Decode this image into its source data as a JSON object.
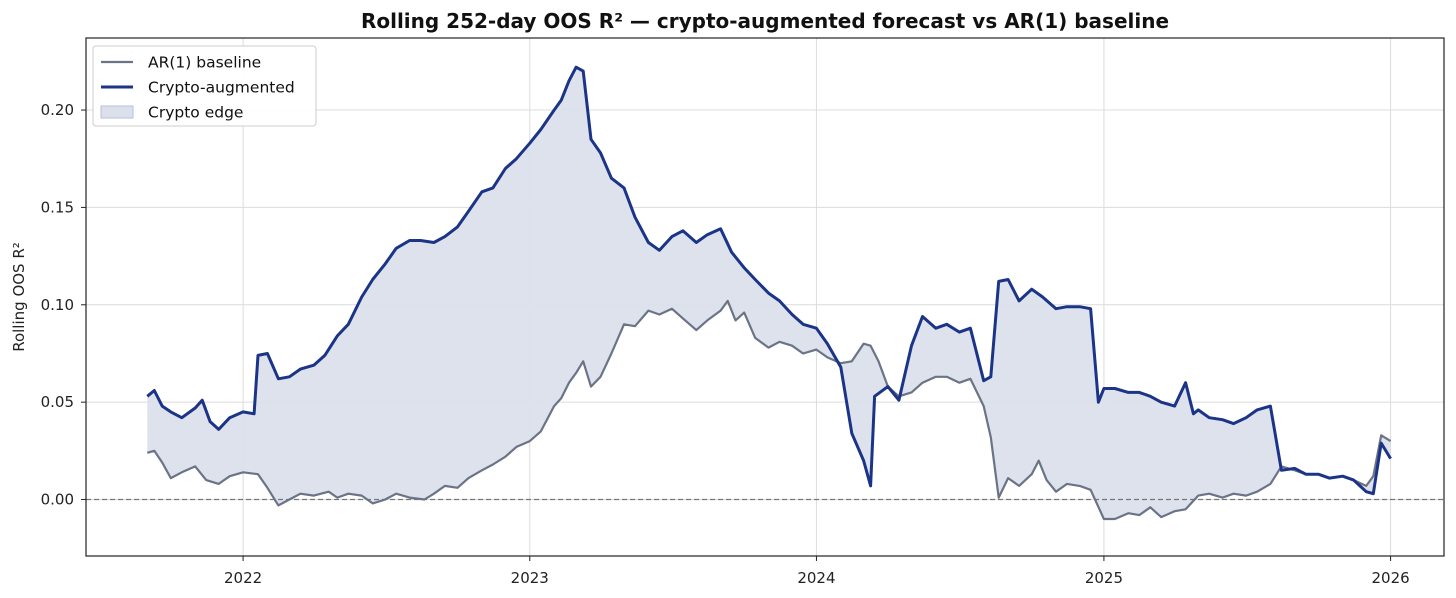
{
  "chart_data": {
    "type": "line",
    "title": "Rolling 252-day OOS R² — crypto-augmented forecast vs AR(1) baseline",
    "xlabel": "",
    "ylabel": "Rolling OOS R²",
    "x_domain": [
      "2021-06-15",
      "2026-03-10"
    ],
    "ylim": [
      -0.029,
      0.237
    ],
    "x_ticks": [
      "2022-01-01",
      "2023-01-01",
      "2024-01-01",
      "2025-01-01",
      "2026-01-01"
    ],
    "x_tick_labels": [
      "2022",
      "2023",
      "2024",
      "2025",
      "2026"
    ],
    "y_ticks": [
      0.0,
      0.05,
      0.1,
      0.15,
      0.2
    ],
    "y_tick_labels": [
      "0.00",
      "0.05",
      "0.10",
      "0.15",
      "0.20"
    ],
    "grid": true,
    "legend_position": "top-left",
    "reference_line": {
      "y": 0.0,
      "style": "dashed"
    },
    "colors": {
      "baseline": "#6b7386",
      "crypto": "#1b3487",
      "edge_fill": "#dbe0ec",
      "zero_line": "#777777"
    },
    "legend": [
      {
        "label": "AR(1) baseline",
        "kind": "line",
        "color": "#6b7386"
      },
      {
        "label": "Crypto-augmented",
        "kind": "line",
        "color": "#1b3487"
      },
      {
        "label": "Crypto edge",
        "kind": "patch",
        "color": "#dbe0ec"
      }
    ],
    "series": [
      {
        "name": "AR(1) baseline",
        "points": [
          [
            "2021-09-01",
            0.024
          ],
          [
            "2021-09-10",
            0.025
          ],
          [
            "2021-09-20",
            0.019
          ],
          [
            "2021-10-01",
            0.011
          ],
          [
            "2021-10-15",
            0.014
          ],
          [
            "2021-11-01",
            0.017
          ],
          [
            "2021-11-15",
            0.01
          ],
          [
            "2021-12-01",
            0.008
          ],
          [
            "2021-12-15",
            0.012
          ],
          [
            "2022-01-01",
            0.014
          ],
          [
            "2022-01-20",
            0.013
          ],
          [
            "2022-02-01",
            0.006
          ],
          [
            "2022-02-15",
            -0.003
          ],
          [
            "2022-03-01",
            0.0
          ],
          [
            "2022-03-15",
            0.003
          ],
          [
            "2022-04-01",
            0.002
          ],
          [
            "2022-04-20",
            0.004
          ],
          [
            "2022-05-01",
            0.001
          ],
          [
            "2022-05-15",
            0.003
          ],
          [
            "2022-06-01",
            0.002
          ],
          [
            "2022-06-15",
            -0.002
          ],
          [
            "2022-07-01",
            0.0
          ],
          [
            "2022-07-15",
            0.003
          ],
          [
            "2022-08-01",
            0.001
          ],
          [
            "2022-08-20",
            0.0
          ],
          [
            "2022-09-01",
            0.003
          ],
          [
            "2022-09-15",
            0.007
          ],
          [
            "2022-10-01",
            0.006
          ],
          [
            "2022-10-15",
            0.011
          ],
          [
            "2022-11-01",
            0.015
          ],
          [
            "2022-11-15",
            0.018
          ],
          [
            "2022-12-01",
            0.022
          ],
          [
            "2022-12-15",
            0.027
          ],
          [
            "2023-01-01",
            0.03
          ],
          [
            "2023-01-15",
            0.035
          ],
          [
            "2023-02-01",
            0.048
          ],
          [
            "2023-02-10",
            0.052
          ],
          [
            "2023-02-20",
            0.06
          ],
          [
            "2023-03-01",
            0.065
          ],
          [
            "2023-03-10",
            0.071
          ],
          [
            "2023-03-20",
            0.058
          ],
          [
            "2023-04-01",
            0.063
          ],
          [
            "2023-04-15",
            0.075
          ],
          [
            "2023-05-01",
            0.09
          ],
          [
            "2023-05-15",
            0.089
          ],
          [
            "2023-06-01",
            0.097
          ],
          [
            "2023-06-15",
            0.095
          ],
          [
            "2023-07-01",
            0.098
          ],
          [
            "2023-07-15",
            0.093
          ],
          [
            "2023-08-01",
            0.087
          ],
          [
            "2023-08-15",
            0.092
          ],
          [
            "2023-09-01",
            0.097
          ],
          [
            "2023-09-10",
            0.102
          ],
          [
            "2023-09-20",
            0.092
          ],
          [
            "2023-10-01",
            0.096
          ],
          [
            "2023-10-15",
            0.083
          ],
          [
            "2023-11-01",
            0.078
          ],
          [
            "2023-11-15",
            0.081
          ],
          [
            "2023-12-01",
            0.079
          ],
          [
            "2023-12-15",
            0.075
          ],
          [
            "2024-01-01",
            0.077
          ],
          [
            "2024-01-15",
            0.073
          ],
          [
            "2024-02-01",
            0.07
          ],
          [
            "2024-02-15",
            0.071
          ],
          [
            "2024-03-01",
            0.08
          ],
          [
            "2024-03-10",
            0.079
          ],
          [
            "2024-03-20",
            0.071
          ],
          [
            "2024-04-01",
            0.058
          ],
          [
            "2024-04-15",
            0.053
          ],
          [
            "2024-05-01",
            0.055
          ],
          [
            "2024-05-15",
            0.06
          ],
          [
            "2024-06-01",
            0.063
          ],
          [
            "2024-06-15",
            0.063
          ],
          [
            "2024-07-01",
            0.06
          ],
          [
            "2024-07-15",
            0.062
          ],
          [
            "2024-08-01",
            0.048
          ],
          [
            "2024-08-10",
            0.032
          ],
          [
            "2024-08-20",
            0.001
          ],
          [
            "2024-09-01",
            0.011
          ],
          [
            "2024-09-15",
            0.007
          ],
          [
            "2024-10-01",
            0.013
          ],
          [
            "2024-10-10",
            0.02
          ],
          [
            "2024-10-20",
            0.01
          ],
          [
            "2024-11-01",
            0.004
          ],
          [
            "2024-11-15",
            0.008
          ],
          [
            "2024-12-01",
            0.007
          ],
          [
            "2024-12-15",
            0.005
          ],
          [
            "2025-01-01",
            -0.01
          ],
          [
            "2025-01-15",
            -0.01
          ],
          [
            "2025-02-01",
            -0.007
          ],
          [
            "2025-02-15",
            -0.008
          ],
          [
            "2025-03-01",
            -0.004
          ],
          [
            "2025-03-15",
            -0.009
          ],
          [
            "2025-04-01",
            -0.006
          ],
          [
            "2025-04-15",
            -0.005
          ],
          [
            "2025-05-01",
            0.002
          ],
          [
            "2025-05-15",
            0.003
          ],
          [
            "2025-06-01",
            0.001
          ],
          [
            "2025-06-15",
            0.003
          ],
          [
            "2025-07-01",
            0.002
          ],
          [
            "2025-07-15",
            0.004
          ],
          [
            "2025-08-01",
            0.008
          ],
          [
            "2025-08-15",
            0.017
          ],
          [
            "2025-09-01",
            0.015
          ],
          [
            "2025-09-15",
            0.013
          ],
          [
            "2025-10-01",
            0.013
          ],
          [
            "2025-10-15",
            0.011
          ],
          [
            "2025-11-01",
            0.012
          ],
          [
            "2025-11-15",
            0.01
          ],
          [
            "2025-12-01",
            0.007
          ],
          [
            "2025-12-10",
            0.012
          ],
          [
            "2025-12-20",
            0.033
          ],
          [
            "2026-01-01",
            0.03
          ]
        ]
      },
      {
        "name": "Crypto-augmented",
        "points": [
          [
            "2021-09-01",
            0.053
          ],
          [
            "2021-09-10",
            0.056
          ],
          [
            "2021-09-20",
            0.048
          ],
          [
            "2021-10-01",
            0.045
          ],
          [
            "2021-10-15",
            0.042
          ],
          [
            "2021-11-01",
            0.047
          ],
          [
            "2021-11-10",
            0.051
          ],
          [
            "2021-11-20",
            0.04
          ],
          [
            "2021-12-01",
            0.036
          ],
          [
            "2021-12-15",
            0.042
          ],
          [
            "2022-01-01",
            0.045
          ],
          [
            "2022-01-15",
            0.044
          ],
          [
            "2022-01-20",
            0.074
          ],
          [
            "2022-02-01",
            0.075
          ],
          [
            "2022-02-15",
            0.062
          ],
          [
            "2022-03-01",
            0.063
          ],
          [
            "2022-03-15",
            0.067
          ],
          [
            "2022-04-01",
            0.069
          ],
          [
            "2022-04-15",
            0.074
          ],
          [
            "2022-05-01",
            0.084
          ],
          [
            "2022-05-15",
            0.09
          ],
          [
            "2022-06-01",
            0.104
          ],
          [
            "2022-06-15",
            0.113
          ],
          [
            "2022-07-01",
            0.121
          ],
          [
            "2022-07-15",
            0.129
          ],
          [
            "2022-08-01",
            0.133
          ],
          [
            "2022-08-15",
            0.133
          ],
          [
            "2022-09-01",
            0.132
          ],
          [
            "2022-09-15",
            0.135
          ],
          [
            "2022-10-01",
            0.14
          ],
          [
            "2022-10-15",
            0.148
          ],
          [
            "2022-11-01",
            0.158
          ],
          [
            "2022-11-15",
            0.16
          ],
          [
            "2022-12-01",
            0.17
          ],
          [
            "2022-12-15",
            0.175
          ],
          [
            "2023-01-01",
            0.183
          ],
          [
            "2023-01-15",
            0.19
          ],
          [
            "2023-02-01",
            0.2
          ],
          [
            "2023-02-10",
            0.205
          ],
          [
            "2023-02-20",
            0.215
          ],
          [
            "2023-03-01",
            0.222
          ],
          [
            "2023-03-10",
            0.22
          ],
          [
            "2023-03-20",
            0.185
          ],
          [
            "2023-04-01",
            0.178
          ],
          [
            "2023-04-15",
            0.165
          ],
          [
            "2023-05-01",
            0.16
          ],
          [
            "2023-05-15",
            0.145
          ],
          [
            "2023-06-01",
            0.132
          ],
          [
            "2023-06-15",
            0.128
          ],
          [
            "2023-07-01",
            0.135
          ],
          [
            "2023-07-15",
            0.138
          ],
          [
            "2023-08-01",
            0.132
          ],
          [
            "2023-08-15",
            0.136
          ],
          [
            "2023-09-01",
            0.139
          ],
          [
            "2023-09-15",
            0.127
          ],
          [
            "2023-10-01",
            0.119
          ],
          [
            "2023-10-15",
            0.113
          ],
          [
            "2023-11-01",
            0.106
          ],
          [
            "2023-11-15",
            0.102
          ],
          [
            "2023-12-01",
            0.095
          ],
          [
            "2023-12-15",
            0.09
          ],
          [
            "2024-01-01",
            0.088
          ],
          [
            "2024-01-15",
            0.08
          ],
          [
            "2024-02-01",
            0.068
          ],
          [
            "2024-02-15",
            0.034
          ],
          [
            "2024-03-01",
            0.02
          ],
          [
            "2024-03-10",
            0.007
          ],
          [
            "2024-03-15",
            0.053
          ],
          [
            "2024-04-01",
            0.058
          ],
          [
            "2024-04-15",
            0.051
          ],
          [
            "2024-05-01",
            0.079
          ],
          [
            "2024-05-15",
            0.094
          ],
          [
            "2024-06-01",
            0.088
          ],
          [
            "2024-06-15",
            0.09
          ],
          [
            "2024-07-01",
            0.086
          ],
          [
            "2024-07-15",
            0.088
          ],
          [
            "2024-08-01",
            0.061
          ],
          [
            "2024-08-10",
            0.063
          ],
          [
            "2024-08-20",
            0.112
          ],
          [
            "2024-09-01",
            0.113
          ],
          [
            "2024-09-15",
            0.102
          ],
          [
            "2024-10-01",
            0.108
          ],
          [
            "2024-10-15",
            0.104
          ],
          [
            "2024-11-01",
            0.098
          ],
          [
            "2024-11-15",
            0.099
          ],
          [
            "2024-12-01",
            0.099
          ],
          [
            "2024-12-15",
            0.098
          ],
          [
            "2024-12-25",
            0.05
          ],
          [
            "2025-01-01",
            0.057
          ],
          [
            "2025-01-15",
            0.057
          ],
          [
            "2025-02-01",
            0.055
          ],
          [
            "2025-02-15",
            0.055
          ],
          [
            "2025-03-01",
            0.053
          ],
          [
            "2025-03-15",
            0.05
          ],
          [
            "2025-04-01",
            0.048
          ],
          [
            "2025-04-15",
            0.06
          ],
          [
            "2025-04-25",
            0.044
          ],
          [
            "2025-05-01",
            0.046
          ],
          [
            "2025-05-15",
            0.042
          ],
          [
            "2025-06-01",
            0.041
          ],
          [
            "2025-06-15",
            0.039
          ],
          [
            "2025-07-01",
            0.042
          ],
          [
            "2025-07-15",
            0.046
          ],
          [
            "2025-08-01",
            0.048
          ],
          [
            "2025-08-15",
            0.015
          ],
          [
            "2025-09-01",
            0.016
          ],
          [
            "2025-09-15",
            0.013
          ],
          [
            "2025-10-01",
            0.013
          ],
          [
            "2025-10-15",
            0.011
          ],
          [
            "2025-11-01",
            0.012
          ],
          [
            "2025-11-15",
            0.01
          ],
          [
            "2025-12-01",
            0.004
          ],
          [
            "2025-12-10",
            0.003
          ],
          [
            "2025-12-20",
            0.029
          ],
          [
            "2026-01-01",
            0.021
          ]
        ]
      }
    ]
  }
}
